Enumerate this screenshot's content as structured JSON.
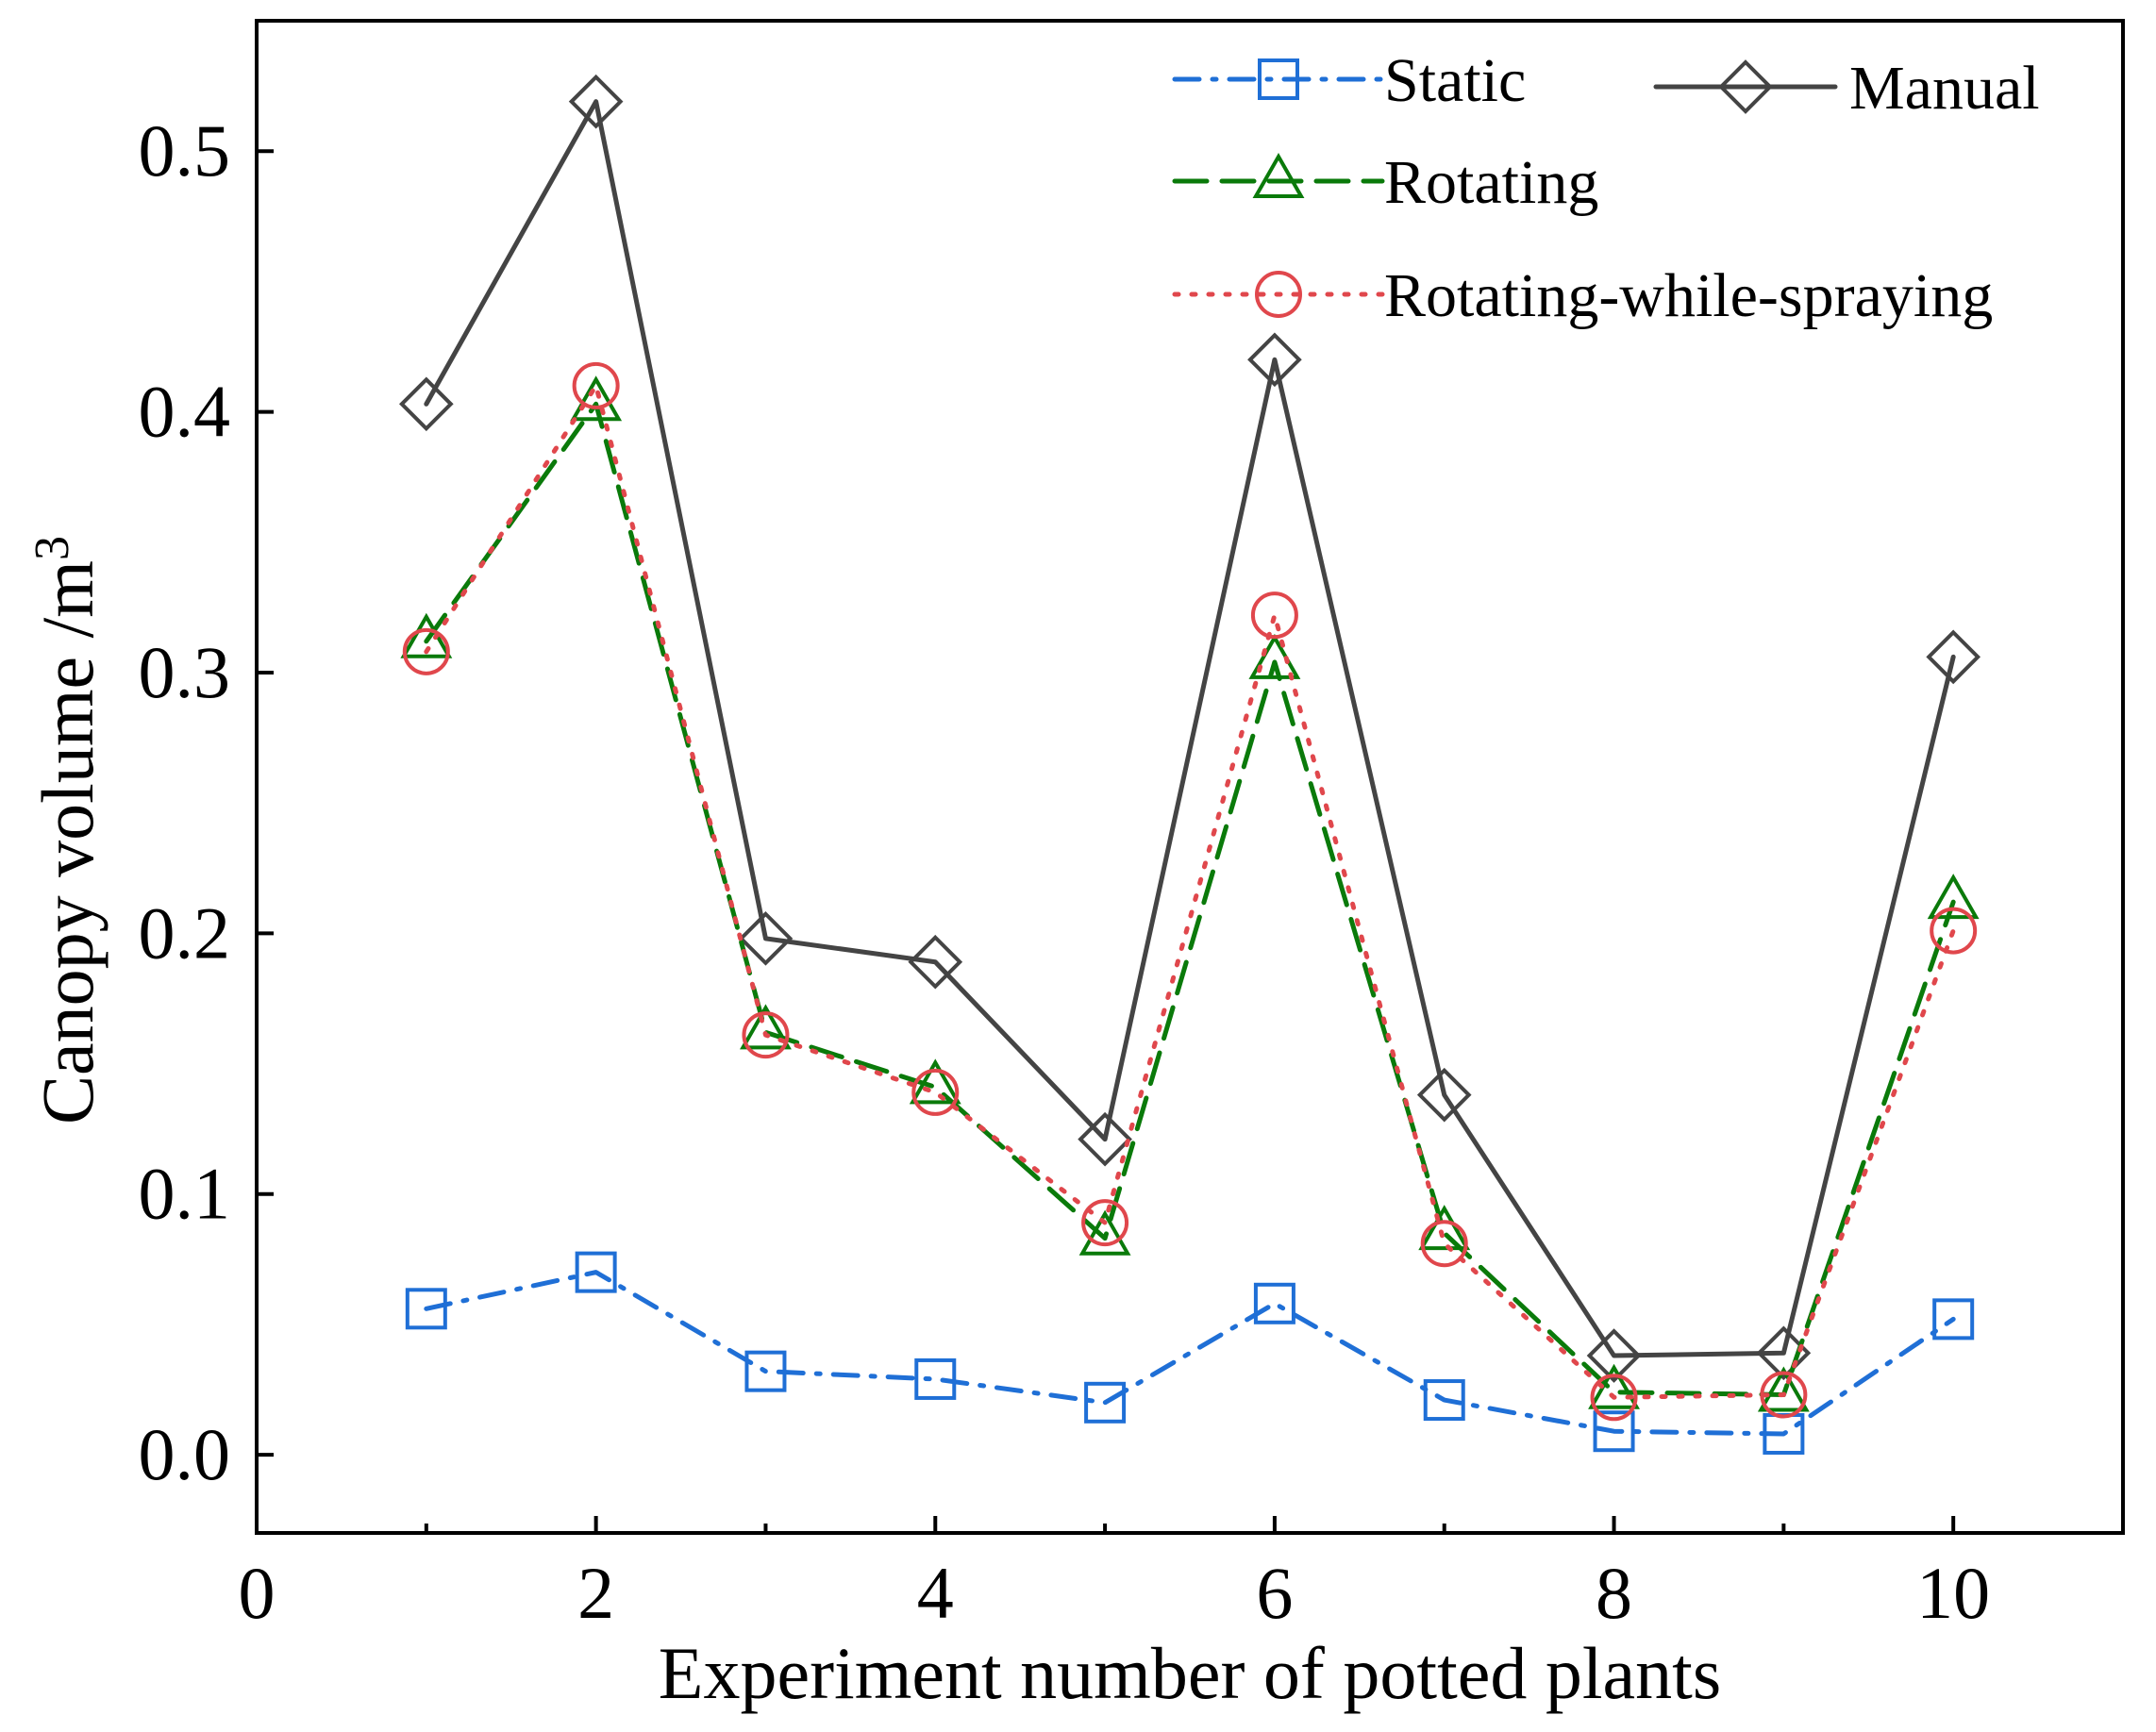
{
  "chart_data": {
    "type": "line",
    "title": "",
    "xlabel": "Experiment number of potted plants",
    "ylabel": "Canopy volume /m",
    "ylabel_superscript": "3",
    "xlim": [
      0,
      11
    ],
    "ylim": [
      -0.03,
      0.55
    ],
    "x_ticks": [
      0,
      2,
      4,
      6,
      8,
      10
    ],
    "x_tick_labels": [
      "0",
      "2",
      "4",
      "6",
      "8",
      "10"
    ],
    "y_ticks": [
      0.0,
      0.1,
      0.2,
      0.3,
      0.4,
      0.5
    ],
    "y_tick_labels": [
      "0.0",
      "0.1",
      "0.2",
      "0.3",
      "0.4",
      "0.5"
    ],
    "x": [
      1,
      2,
      3,
      4,
      5,
      6,
      7,
      8,
      9,
      10
    ],
    "legend_position": "top-right",
    "series": [
      {
        "name": "Static",
        "color": "#1f6fd6",
        "line": "dash-dot",
        "marker": "square",
        "values": [
          0.056,
          0.07,
          0.032,
          0.029,
          0.02,
          0.058,
          0.021,
          0.009,
          0.008,
          0.052
        ]
      },
      {
        "name": "Manual",
        "color": "#444444",
        "line": "solid",
        "marker": "diamond",
        "values": [
          0.403,
          0.519,
          0.198,
          0.189,
          0.121,
          0.42,
          0.138,
          0.038,
          0.039,
          0.306
        ]
      },
      {
        "name": "Rotating",
        "color": "#0a7a0a",
        "line": "dashed",
        "marker": "triangle",
        "values": [
          0.312,
          0.403,
          0.162,
          0.141,
          0.083,
          0.304,
          0.085,
          0.024,
          0.023,
          0.212
        ]
      },
      {
        "name": "Rotating-while-spraying",
        "color": "#e0474c",
        "line": "dotted",
        "marker": "circle",
        "values": [
          0.308,
          0.41,
          0.161,
          0.139,
          0.089,
          0.322,
          0.081,
          0.022,
          0.023,
          0.201
        ]
      }
    ]
  }
}
